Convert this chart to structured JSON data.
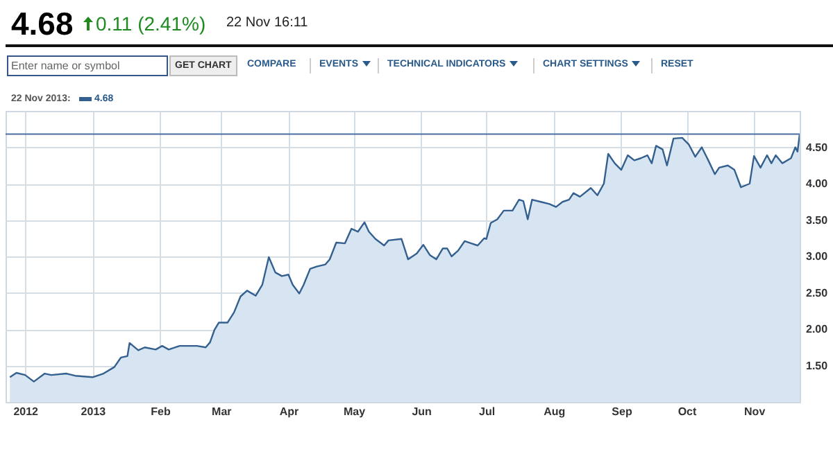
{
  "chart_data": {
    "type": "area",
    "annotations": [
      "4.68",
      "0.11 (2.41%)",
      "22 Nov 16:11",
      "Enter name or symbol",
      "GET CHART",
      "COMPARE",
      "EVENTS",
      "TECHNICAL INDICATORS",
      "CHART SETTINGS",
      "RESET",
      "22 Nov 2013:",
      "4.68"
    ],
    "x": [
      "2012-11-24",
      "2012-11-27",
      "2012-12-01",
      "2012-12-05",
      "2012-12-10",
      "2012-12-13",
      "2012-12-20",
      "2012-12-24",
      "2013-01-01",
      "2013-01-06",
      "2013-01-11",
      "2013-01-14",
      "2013-01-17",
      "2013-01-18",
      "2013-01-22",
      "2013-01-25",
      "2013-01-30",
      "2013-02-02",
      "2013-02-05",
      "2013-02-10",
      "2013-02-18",
      "2013-02-22",
      "2013-02-24",
      "2013-02-26",
      "2013-02-28",
      "2013-03-04",
      "2013-03-07",
      "2013-03-10",
      "2013-03-13",
      "2013-03-17",
      "2013-03-20",
      "2013-03-23",
      "2013-03-26",
      "2013-03-29",
      "2013-04-01",
      "2013-04-03",
      "2013-04-06",
      "2013-04-08",
      "2013-04-11",
      "2013-04-14",
      "2013-04-18",
      "2013-04-20",
      "2013-04-23",
      "2013-04-27",
      "2013-04-30",
      "2013-05-03",
      "2013-05-06",
      "2013-05-08",
      "2013-05-11",
      "2013-05-15",
      "2013-05-17",
      "2013-05-23",
      "2013-05-26",
      "2013-05-30",
      "2013-06-02",
      "2013-06-05",
      "2013-06-08",
      "2013-06-11",
      "2013-06-13",
      "2013-06-15",
      "2013-06-18",
      "2013-06-21",
      "2013-06-24",
      "2013-06-27",
      "2013-06-30",
      "2013-07-01",
      "2013-07-03",
      "2013-07-06",
      "2013-07-09",
      "2013-07-13",
      "2013-07-16",
      "2013-07-18",
      "2013-07-20",
      "2013-07-22",
      "2013-07-26",
      "2013-07-30",
      "2013-08-02",
      "2013-08-05",
      "2013-08-08",
      "2013-08-10",
      "2013-08-13",
      "2013-08-18",
      "2013-08-21",
      "2013-08-24",
      "2013-08-26",
      "2013-08-29",
      "2013-09-01",
      "2013-09-04",
      "2013-09-07",
      "2013-09-10",
      "2013-09-13",
      "2013-09-15",
      "2013-09-17",
      "2013-09-20",
      "2013-09-22",
      "2013-09-25",
      "2013-09-29",
      "2013-10-02",
      "2013-10-05",
      "2013-10-08",
      "2013-10-11",
      "2013-10-14",
      "2013-10-16",
      "2013-10-20",
      "2013-10-23",
      "2013-10-26",
      "2013-10-30",
      "2013-11-01",
      "2013-11-04",
      "2013-11-07",
      "2013-11-09",
      "2013-11-11",
      "2013-11-14",
      "2013-11-18",
      "2013-11-20",
      "2013-11-21",
      "2013-11-22"
    ],
    "series": [
      {
        "color": "#34608f",
        "values": [
          1.34,
          1.4,
          1.37,
          1.28,
          1.39,
          1.37,
          1.39,
          1.36,
          1.34,
          1.39,
          1.48,
          1.61,
          1.63,
          1.81,
          1.71,
          1.75,
          1.72,
          1.77,
          1.72,
          1.77,
          1.77,
          1.75,
          1.82,
          1.99,
          2.09,
          2.09,
          2.23,
          2.45,
          2.53,
          2.46,
          2.61,
          2.99,
          2.78,
          2.73,
          2.75,
          2.61,
          2.49,
          2.61,
          2.83,
          2.86,
          2.89,
          2.96,
          3.19,
          3.18,
          3.38,
          3.34,
          3.47,
          3.34,
          3.24,
          3.15,
          3.22,
          3.24,
          2.96,
          3.04,
          3.16,
          3.02,
          2.96,
          3.11,
          3.11,
          3.0,
          3.08,
          3.21,
          3.18,
          3.15,
          3.25,
          3.24,
          3.46,
          3.51,
          3.63,
          3.63,
          3.78,
          3.76,
          3.51,
          3.78,
          3.75,
          3.72,
          3.68,
          3.75,
          3.78,
          3.87,
          3.82,
          3.94,
          3.84,
          4.0,
          4.41,
          4.28,
          4.19,
          4.39,
          4.32,
          4.35,
          4.39,
          4.28,
          4.52,
          4.47,
          4.25,
          4.62,
          4.63,
          4.54,
          4.37,
          4.5,
          4.32,
          4.13,
          4.22,
          4.25,
          4.19,
          3.95,
          4.0,
          4.38,
          4.22,
          4.39,
          4.28,
          4.39,
          4.28,
          4.35,
          4.5,
          4.44,
          4.68
        ]
      }
    ],
    "xlim": [
      "2012-11-22",
      "2013-11-22"
    ],
    "xticks": [
      {
        "value": "2012-12-01",
        "label": "2012"
      },
      {
        "value": "2013-01-01",
        "label": "2013"
      },
      {
        "value": "2013-02-01",
        "label": "Feb"
      },
      {
        "value": "2013-03-01",
        "label": "Mar"
      },
      {
        "value": "2013-04-01",
        "label": "Apr"
      },
      {
        "value": "2013-05-01",
        "label": "May"
      },
      {
        "value": "2013-06-01",
        "label": "Jun"
      },
      {
        "value": "2013-07-01",
        "label": "Jul"
      },
      {
        "value": "2013-08-01",
        "label": "Aug"
      },
      {
        "value": "2013-09-01",
        "label": "Sep"
      },
      {
        "value": "2013-10-01",
        "label": "Oct"
      },
      {
        "value": "2013-11-01",
        "label": "Nov"
      }
    ],
    "ylim": [
      1,
      5
    ],
    "yticks": [
      {
        "value": 1.5,
        "label": "1.50"
      },
      {
        "value": 2,
        "label": "2.00"
      },
      {
        "value": 2.5,
        "label": "2.50"
      },
      {
        "value": 3,
        "label": "3.00"
      },
      {
        "value": 3.5,
        "label": "3.50"
      },
      {
        "value": 4,
        "label": "4.00"
      },
      {
        "value": 4.5,
        "label": "4.50"
      }
    ],
    "ref_lines": [
      {
        "axis": "y",
        "value": 4.68,
        "color": "#4a6fa0"
      }
    ],
    "grid": true
  }
}
